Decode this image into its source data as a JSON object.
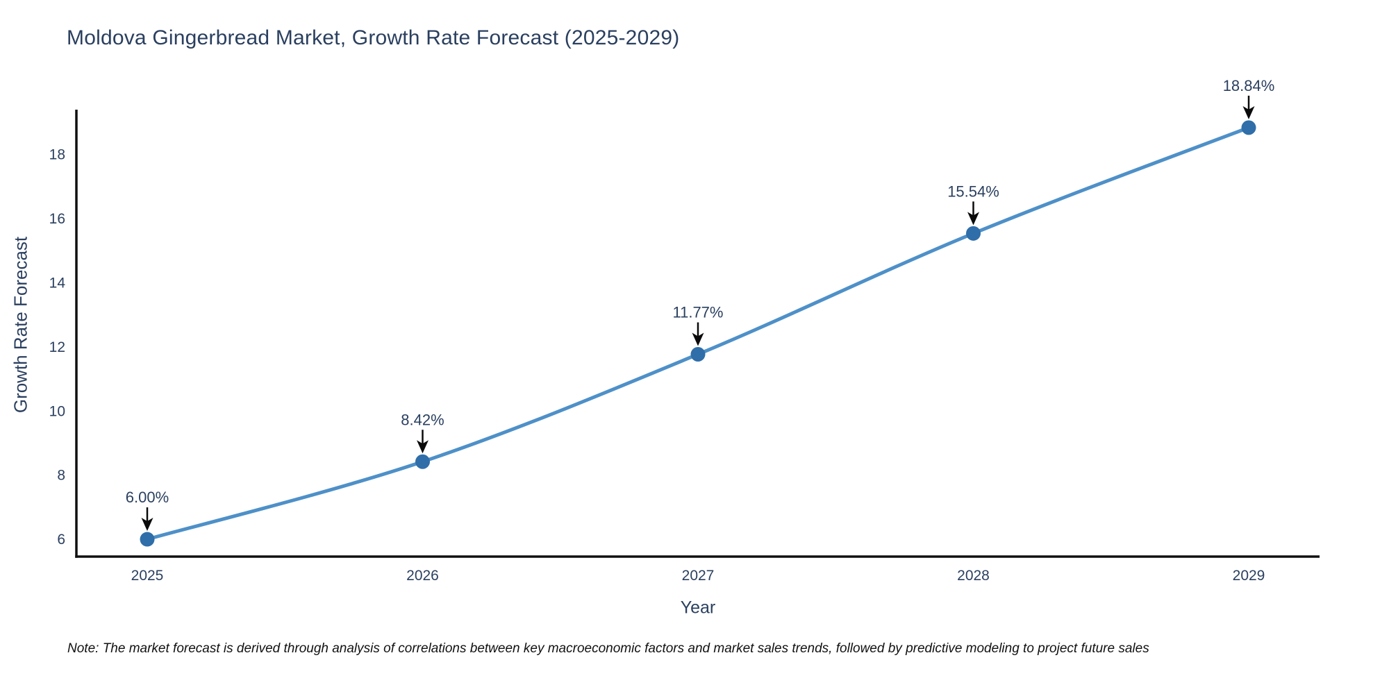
{
  "note": "Note: The market forecast is derived through analysis of correlations between key macroeconomic factors and market sales trends, followed by predictive modeling to project future sales",
  "chart_data": {
    "type": "line",
    "title": "Moldova Gingerbread Market, Growth Rate Forecast (2025-2029)",
    "xlabel": "Year",
    "ylabel": "Growth Rate Forecast",
    "categories": [
      "2025",
      "2026",
      "2027",
      "2028",
      "2029"
    ],
    "series": [
      {
        "name": "Growth Rate Forecast",
        "values": [
          6.0,
          8.42,
          11.77,
          15.54,
          18.84
        ],
        "point_labels": [
          "6.00%",
          "8.42%",
          "11.77%",
          "15.54%",
          "18.84%"
        ]
      }
    ],
    "yticks": [
      6,
      8,
      10,
      12,
      14,
      16,
      18
    ],
    "ylim": [
      5.46,
      19.4
    ],
    "grid": false,
    "line_shape": "spline",
    "legend": "none",
    "annotations": "value labels with downward arrows above each point",
    "colors": {
      "line": "#4e90c8",
      "marker": "#2f6ea9",
      "text": "#2a3f5f",
      "axis": "#101010",
      "arrow": "#0a0a0a",
      "background": "#ffffff"
    }
  }
}
